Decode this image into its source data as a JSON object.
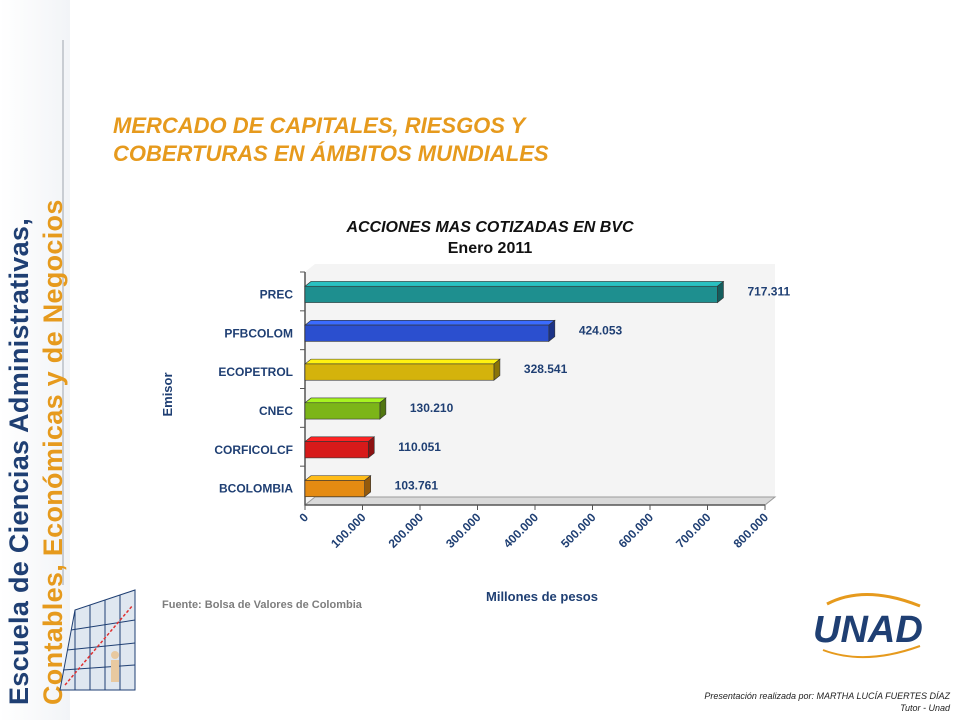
{
  "sidebar": {
    "line1": "Escuela de Ciencias Administrativas,",
    "line2": "Contables, Económicas y de Negocios"
  },
  "slide": {
    "title_line1": "MERCADO DE CAPITALES, RIESGOS Y",
    "title_line2": "COBERTURAS EN ÁMBITOS MUNDIALES"
  },
  "chart_data": {
    "type": "bar",
    "orientation": "horizontal",
    "title": "ACCIONES MAS COTIZADAS EN BVC",
    "subtitle": "Enero 2011",
    "xlabel": "Millones de pesos",
    "ylabel": "Emisor",
    "categories": [
      "PREC",
      "PFBCOLOM",
      "ECOPETROL",
      "CNEC",
      "CORFICOLCF",
      "BCOLOMBIA"
    ],
    "values": [
      717311,
      424053,
      328541,
      130210,
      110051,
      103761
    ],
    "data_labels": [
      "717.311",
      "424.053",
      "328.541",
      "130.210",
      "110.051",
      "103.761"
    ],
    "colors": [
      "#1e8f8f",
      "#2b4fcf",
      "#d4b30c",
      "#7cb518",
      "#d71a1a",
      "#e58b12"
    ],
    "xlim": [
      0,
      800000
    ],
    "xticks": [
      0,
      100000,
      200000,
      300000,
      400000,
      500000,
      600000,
      700000,
      800000
    ],
    "xtick_labels": [
      "0",
      "100.000",
      "200.000",
      "300.000",
      "400.000",
      "500.000",
      "600.000",
      "700.000",
      "800.000"
    ],
    "grid": false,
    "legend": "none"
  },
  "footer": {
    "source": "Fuente: Bolsa de Valores de Colombia",
    "credit_line1": "Presentación realizada por: MARTHA LUCÍA FUERTES DÍAZ",
    "credit_line2": "Tutor - Unad"
  },
  "logo": {
    "text": "UNAD"
  }
}
